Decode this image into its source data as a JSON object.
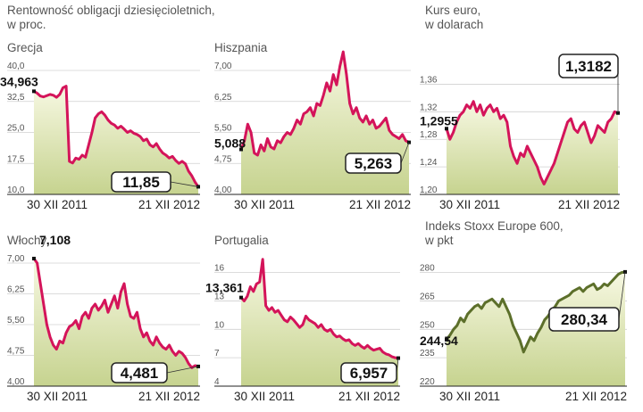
{
  "header": {
    "yield_title_line1": "Rentowność obligacji dziesięcioletnich,",
    "yield_title_line2": "w proc.",
    "euro_title_line1": "Kurs euro,",
    "euro_title_line2": "w dolarach",
    "stoxx_title_line1": "Indeks Stoxx Europe 600,",
    "stoxx_title_line2": "w pkt"
  },
  "x_labels": {
    "start": "30 XII 2011",
    "end": "21 XII 2012"
  },
  "colors": {
    "line_red": "#d4145a",
    "line_green": "#5c6f2a",
    "area_light": "#f7f8e2",
    "area_dark": "#c6d38f",
    "grid": "#d0d0d0"
  },
  "chart_data": [
    {
      "type": "area",
      "title": "Grecja",
      "yticks": [
        "40,0",
        "32,5",
        "25,0",
        "17,5",
        "10,0"
      ],
      "ylim": [
        10,
        40
      ],
      "start_label": "34,963",
      "end_label": "11,85",
      "start_value": 34.963,
      "end_value": 11.85,
      "values": [
        34.96,
        34.5,
        33.8,
        33.6,
        33.9,
        34.2,
        34.0,
        33.5,
        34.2,
        35.8,
        36.2,
        18.0,
        17.6,
        18.8,
        18.5,
        19.5,
        19.0,
        22.0,
        25.0,
        28.5,
        29.5,
        30.0,
        29.2,
        28.0,
        27.2,
        26.8,
        26.0,
        26.5,
        25.8,
        25.0,
        25.4,
        24.8,
        24.5,
        24.0,
        23.0,
        23.4,
        22.0,
        21.5,
        22.3,
        21.0,
        20.0,
        19.5,
        18.8,
        19.2,
        18.2,
        17.5,
        18.0,
        17.4,
        15.6,
        14.5,
        13.0,
        11.85
      ]
    },
    {
      "type": "area",
      "title": "Hiszpania",
      "yticks": [
        "7,00",
        "6,25",
        "5,50",
        "4,75",
        "4,00"
      ],
      "ylim": [
        4.0,
        7.0
      ],
      "start_label": "5,088",
      "end_label": "5,263",
      "start_value": 5.088,
      "end_value": 5.263,
      "values": [
        5.09,
        5.3,
        5.7,
        5.5,
        5.0,
        4.95,
        5.2,
        5.05,
        5.35,
        5.15,
        5.1,
        5.3,
        5.25,
        5.4,
        5.5,
        5.45,
        5.6,
        5.8,
        5.7,
        5.95,
        6.0,
        6.1,
        5.9,
        6.2,
        6.15,
        6.4,
        6.7,
        6.5,
        6.9,
        6.65,
        7.1,
        7.45,
        6.9,
        6.2,
        5.95,
        6.1,
        5.85,
        5.75,
        5.9,
        5.7,
        5.8,
        5.6,
        5.65,
        5.75,
        5.85,
        5.55,
        5.45,
        5.4,
        5.35,
        5.45,
        5.3,
        5.26
      ]
    },
    {
      "type": "line",
      "title": "Kurs euro",
      "yticks": [
        "1,36",
        "1,32",
        "1,28",
        "1,24",
        "1,20"
      ],
      "ylim": [
        1.2,
        1.38
      ],
      "start_label": "1,2955",
      "end_label": "1,3182",
      "start_value": 1.2955,
      "end_value": 1.3182,
      "values": [
        1.2955,
        1.28,
        1.29,
        1.305,
        1.315,
        1.32,
        1.33,
        1.325,
        1.335,
        1.32,
        1.33,
        1.315,
        1.325,
        1.33,
        1.32,
        1.325,
        1.31,
        1.315,
        1.305,
        1.27,
        1.255,
        1.245,
        1.26,
        1.255,
        1.27,
        1.26,
        1.25,
        1.24,
        1.225,
        1.215,
        1.225,
        1.235,
        1.245,
        1.26,
        1.275,
        1.29,
        1.305,
        1.31,
        1.295,
        1.29,
        1.3,
        1.305,
        1.29,
        1.275,
        1.285,
        1.3,
        1.295,
        1.29,
        1.305,
        1.31,
        1.32,
        1.3182
      ]
    },
    {
      "type": "area",
      "title": "Włochy",
      "yticks": [
        "7,00",
        "6,25",
        "5,50",
        "4,75",
        "4,00"
      ],
      "ylim": [
        4.0,
        7.0
      ],
      "start_label": "7,108",
      "end_label": "4,481",
      "start_value": 7.108,
      "end_value": 4.481,
      "values": [
        7.11,
        7.0,
        6.5,
        6.0,
        5.5,
        5.2,
        5.0,
        4.9,
        5.1,
        5.05,
        5.3,
        5.45,
        5.5,
        5.6,
        5.4,
        5.7,
        5.8,
        5.65,
        5.9,
        6.0,
        5.85,
        5.95,
        6.1,
        5.8,
        6.0,
        6.2,
        5.9,
        6.3,
        6.5,
        6.0,
        5.7,
        5.65,
        5.8,
        5.4,
        5.2,
        5.3,
        5.1,
        5.0,
        5.2,
        5.05,
        4.95,
        4.9,
        5.0,
        4.85,
        4.75,
        4.85,
        4.8,
        4.7,
        4.55,
        4.45,
        4.5,
        4.48
      ]
    },
    {
      "type": "area",
      "title": "Portugalia",
      "yticks": [
        "16",
        "13",
        "10",
        "7",
        "4"
      ],
      "ylim": [
        4,
        17
      ],
      "start_label": "13,361",
      "end_label": "6,957",
      "start_value": 13.361,
      "end_value": 6.957,
      "values": [
        13.36,
        13.0,
        13.5,
        14.5,
        14.0,
        14.8,
        15.0,
        17.4,
        12.5,
        12.0,
        12.3,
        11.8,
        12.0,
        11.5,
        11.0,
        10.8,
        11.3,
        11.0,
        10.6,
        10.2,
        10.5,
        11.4,
        11.0,
        10.8,
        10.6,
        10.2,
        10.5,
        10.0,
        9.8,
        10.0,
        9.5,
        9.2,
        9.3,
        9.0,
        8.8,
        8.9,
        8.5,
        8.3,
        8.5,
        8.2,
        8.0,
        8.3,
        8.0,
        7.8,
        7.9,
        8.0,
        7.6,
        7.4,
        7.3,
        7.1,
        7.0,
        6.96
      ]
    },
    {
      "type": "line",
      "title": "Indeks Stoxx Europe 600",
      "yticks": [
        "280",
        "265",
        "250",
        "235",
        "220"
      ],
      "ylim": [
        220,
        285
      ],
      "start_label": "244,54",
      "end_label": "280,34",
      "start_value": 244.54,
      "end_value": 280.34,
      "values": [
        244.54,
        247,
        250,
        252,
        256,
        254,
        258,
        260,
        262,
        263,
        261,
        264,
        265,
        266,
        264,
        262,
        266,
        262,
        258,
        252,
        248,
        244,
        238,
        242,
        246,
        244,
        248,
        251,
        255,
        257,
        260,
        262,
        265,
        266,
        267,
        268,
        270,
        271,
        272,
        270,
        272,
        273,
        274,
        271,
        272,
        274,
        273,
        275,
        277,
        279,
        280,
        280.34
      ]
    }
  ]
}
